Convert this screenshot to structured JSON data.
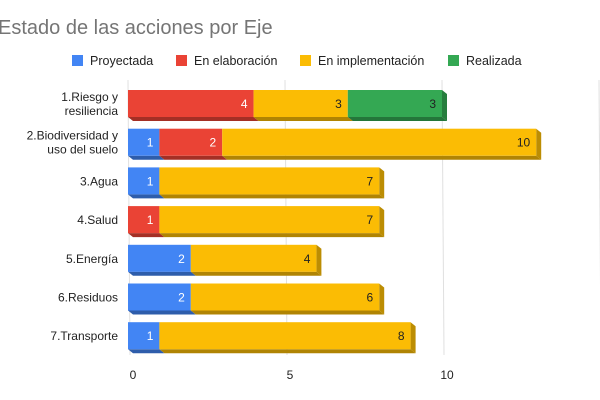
{
  "chart_data": {
    "type": "bar",
    "orientation": "horizontal",
    "stacked": true,
    "style": "3d",
    "title": "Estado de las acciones por Eje",
    "legend_position": "top",
    "grid": true,
    "xlim": [
      0,
      15
    ],
    "xticks": [
      "0",
      "5",
      "10",
      "1"
    ],
    "categories": [
      [
        "1.Riesgo y",
        "resiliencia"
      ],
      [
        "2.Biodiversidad y",
        "uso del suelo"
      ],
      [
        "3.Agua"
      ],
      [
        "4.Salud"
      ],
      [
        "5.Energía"
      ],
      [
        "6.Residuos"
      ],
      [
        "7.Transporte"
      ]
    ],
    "series": [
      {
        "name": "Proyectada",
        "color": "#4285f4",
        "label_color": "#ffffff",
        "values": [
          0,
          1,
          1,
          0,
          2,
          2,
          1
        ]
      },
      {
        "name": "En elaboración",
        "color": "#ea4335",
        "label_color": "#ffffff",
        "values": [
          4,
          2,
          0,
          1,
          0,
          0,
          0
        ]
      },
      {
        "name": "En implementación",
        "color": "#fbbc04",
        "label_color": "#222222",
        "values": [
          3,
          10,
          7,
          7,
          4,
          6,
          8
        ]
      },
      {
        "name": "Realizada",
        "color": "#34a853",
        "label_color": "#222222",
        "values": [
          3,
          0,
          0,
          0,
          0,
          0,
          0
        ]
      }
    ]
  }
}
